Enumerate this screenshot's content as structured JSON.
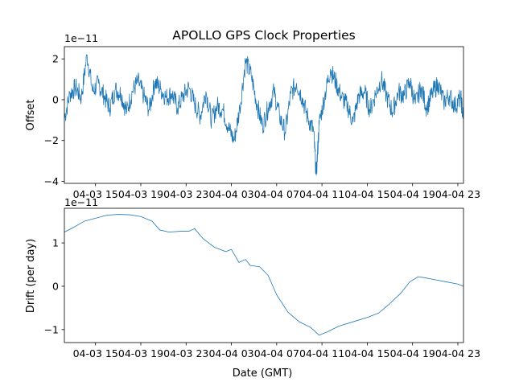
{
  "chart_data": [
    {
      "type": "line",
      "title": "APOLLO GPS Clock Properties",
      "xlabel": "",
      "ylabel": "Offset",
      "y_offset_text": "1e−11",
      "ylim": [
        -4.1,
        2.6
      ],
      "yticks": [
        -4,
        -2,
        0,
        2
      ],
      "ytick_labels": [
        "−4",
        "−2",
        "0",
        "2"
      ],
      "xlim": [
        "04-03 12:15",
        "04-04 23:30"
      ],
      "xticks": [
        "04-03 15",
        "04-03 19",
        "04-03 23",
        "04-04 03",
        "04-04 07",
        "04-04 11",
        "04-04 15",
        "04-04 19",
        "04-04 23"
      ],
      "color": "#1f77b4",
      "series": [
        {
          "x_hours_note_free": true,
          "points": [
            [
              "04-03 12:15",
              -0.9
            ],
            [
              "04-03 12:45",
              0.3
            ],
            [
              "04-03 13:15",
              0.6
            ],
            [
              "04-03 13:45",
              0.1
            ],
            [
              "04-03 14:15",
              2.2
            ],
            [
              "04-03 14:45",
              0.4
            ],
            [
              "04-03 15:15",
              0.8
            ],
            [
              "04-03 15:45",
              0.2
            ],
            [
              "04-03 16:15",
              -0.4
            ],
            [
              "04-03 16:45",
              0.5
            ],
            [
              "04-03 17:15",
              0.3
            ],
            [
              "04-03 17:45",
              -0.6
            ],
            [
              "04-03 18:15",
              0.4
            ],
            [
              "04-03 18:45",
              0.9
            ],
            [
              "04-03 19:15",
              0.2
            ],
            [
              "04-03 19:45",
              -0.5
            ],
            [
              "04-03 20:15",
              0.9
            ],
            [
              "04-03 20:45",
              0.5
            ],
            [
              "04-03 21:15",
              0.1
            ],
            [
              "04-03 21:45",
              0.3
            ],
            [
              "04-03 22:15",
              -0.4
            ],
            [
              "04-03 22:45",
              0.2
            ],
            [
              "04-03 23:15",
              0.6
            ],
            [
              "04-03 23:45",
              -0.2
            ],
            [
              "04-04 00:15",
              -0.8
            ],
            [
              "04-04 00:45",
              0.4
            ],
            [
              "04-04 01:15",
              -1.0
            ],
            [
              "04-04 01:45",
              -0.3
            ],
            [
              "04-04 02:15",
              -0.5
            ],
            [
              "04-04 02:45",
              -1.4
            ],
            [
              "04-04 03:15",
              -2.0
            ],
            [
              "04-04 03:45",
              -0.4
            ],
            [
              "04-04 04:15",
              1.9
            ],
            [
              "04-04 04:45",
              1.2
            ],
            [
              "04-04 05:15",
              -0.2
            ],
            [
              "04-04 05:45",
              -1.3
            ],
            [
              "04-04 06:15",
              -0.4
            ],
            [
              "04-04 06:45",
              0.4
            ],
            [
              "04-04 07:15",
              -0.8
            ],
            [
              "04-04 07:45",
              -1.6
            ],
            [
              "04-04 08:15",
              0.3
            ],
            [
              "04-04 08:45",
              0.8
            ],
            [
              "04-04 09:15",
              0.1
            ],
            [
              "04-04 09:45",
              -0.9
            ],
            [
              "04-04 10:15",
              -1.5
            ],
            [
              "04-04 10:30",
              -3.7
            ],
            [
              "04-04 10:45",
              -1.2
            ],
            [
              "04-04 11:15",
              0.2
            ],
            [
              "04-04 11:45",
              1.5
            ],
            [
              "04-04 12:15",
              0.8
            ],
            [
              "04-04 12:45",
              0.1
            ],
            [
              "04-04 13:15",
              -0.3
            ],
            [
              "04-04 13:45",
              -1.1
            ],
            [
              "04-04 14:15",
              0.2
            ],
            [
              "04-04 14:45",
              0.4
            ],
            [
              "04-04 15:15",
              -0.5
            ],
            [
              "04-04 15:45",
              0.3
            ],
            [
              "04-04 16:15",
              1.0
            ],
            [
              "04-04 16:45",
              0.1
            ],
            [
              "04-04 17:15",
              -0.6
            ],
            [
              "04-04 17:45",
              0.4
            ],
            [
              "04-04 18:15",
              0.2
            ],
            [
              "04-04 18:45",
              0.9
            ],
            [
              "04-04 19:15",
              -0.2
            ],
            [
              "04-04 19:45",
              0.6
            ],
            [
              "04-04 20:15",
              -0.4
            ],
            [
              "04-04 20:45",
              0.3
            ],
            [
              "04-04 21:15",
              0.8
            ],
            [
              "04-04 21:45",
              -0.1
            ],
            [
              "04-04 22:15",
              0.2
            ],
            [
              "04-04 22:45",
              -0.3
            ],
            [
              "04-04 23:15",
              0.1
            ],
            [
              "04-04 23:30",
              -0.9
            ]
          ]
        }
      ]
    },
    {
      "type": "line",
      "title": "",
      "xlabel": "Date (GMT)",
      "ylabel": "Drift (per day)",
      "y_offset_text": "1e−11",
      "ylim": [
        -1.3,
        1.8
      ],
      "yticks": [
        -1,
        0,
        1
      ],
      "ytick_labels": [
        "−1",
        "0",
        "1"
      ],
      "xlim": [
        "04-03 12:15",
        "04-04 23:30"
      ],
      "xticks": [
        "04-03 15",
        "04-03 19",
        "04-03 23",
        "04-04 03",
        "04-04 07",
        "04-04 11",
        "04-04 15",
        "04-04 19",
        "04-04 23"
      ],
      "color": "#1f77b4",
      "series": [
        {
          "points": [
            [
              "04-03 12:15",
              1.25
            ],
            [
              "04-03 13:00",
              1.35
            ],
            [
              "04-03 14:00",
              1.5
            ],
            [
              "04-03 15:00",
              1.57
            ],
            [
              "04-03 16:00",
              1.64
            ],
            [
              "04-03 17:00",
              1.66
            ],
            [
              "04-03 18:00",
              1.65
            ],
            [
              "04-03 19:00",
              1.61
            ],
            [
              "04-03 20:00",
              1.5
            ],
            [
              "04-03 20:40",
              1.3
            ],
            [
              "04-03 21:30",
              1.25
            ],
            [
              "04-03 22:30",
              1.27
            ],
            [
              "04-03 23:15",
              1.27
            ],
            [
              "04-03 23:45",
              1.33
            ],
            [
              "04-04 00:30",
              1.1
            ],
            [
              "04-04 01:30",
              0.9
            ],
            [
              "04-04 02:30",
              0.8
            ],
            [
              "04-04 03:00",
              0.85
            ],
            [
              "04-04 03:40",
              0.55
            ],
            [
              "04-04 04:15",
              0.62
            ],
            [
              "04-04 04:40",
              0.48
            ],
            [
              "04-04 05:30",
              0.45
            ],
            [
              "04-04 06:15",
              0.25
            ],
            [
              "04-04 07:00",
              -0.2
            ],
            [
              "04-04 08:00",
              -0.6
            ],
            [
              "04-04 09:00",
              -0.82
            ],
            [
              "04-04 10:00",
              -0.95
            ],
            [
              "04-04 10:45",
              -1.13
            ],
            [
              "04-04 11:30",
              -1.05
            ],
            [
              "04-04 12:30",
              -0.92
            ],
            [
              "04-04 14:00",
              -0.8
            ],
            [
              "04-04 15:00",
              -0.72
            ],
            [
              "04-04 16:00",
              -0.62
            ],
            [
              "04-04 17:00",
              -0.4
            ],
            [
              "04-04 18:00",
              -0.15
            ],
            [
              "04-04 18:45",
              0.1
            ],
            [
              "04-04 19:30",
              0.22
            ],
            [
              "04-04 20:00",
              0.2
            ],
            [
              "04-04 21:00",
              0.15
            ],
            [
              "04-04 22:00",
              0.1
            ],
            [
              "04-04 23:00",
              0.05
            ],
            [
              "04-04 23:30",
              0.0
            ]
          ]
        }
      ]
    }
  ]
}
